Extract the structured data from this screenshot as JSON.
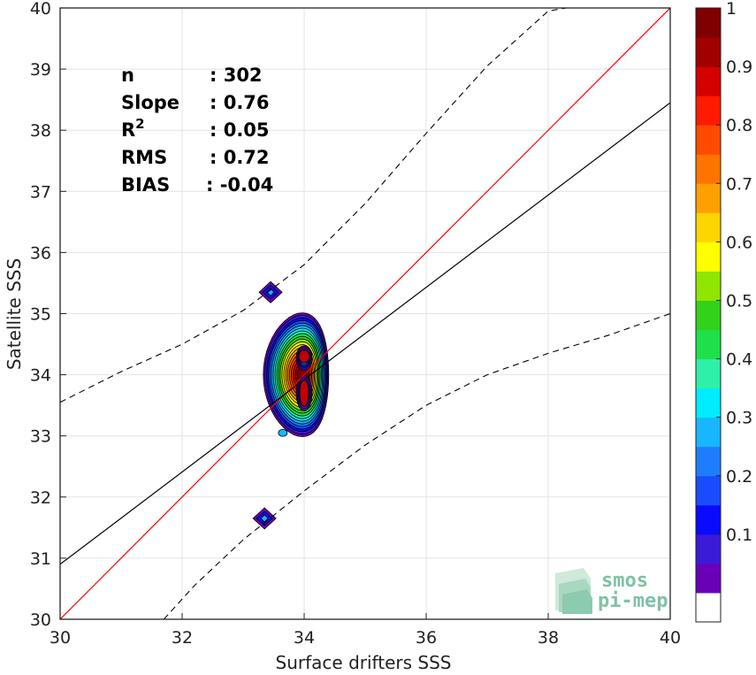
{
  "chart_data": {
    "type": "scatter",
    "subtype": "density-contour",
    "xlabel": "Surface drifters SSS",
    "ylabel": "Satellite SSS",
    "xlim": [
      30,
      40
    ],
    "ylim": [
      30,
      40
    ],
    "xticks": [
      "30",
      "32",
      "34",
      "36",
      "38",
      "40"
    ],
    "yticks": [
      "30",
      "31",
      "32",
      "33",
      "34",
      "35",
      "36",
      "37",
      "38",
      "39",
      "40"
    ],
    "grid": true,
    "stats": [
      {
        "label": "n",
        "value": ": 302"
      },
      {
        "label": "Slope",
        "value": ": 0.76"
      },
      {
        "label": "R",
        "sup": "2",
        "value": ": 0.05"
      },
      {
        "label": "RMS",
        "value": ": 0.72"
      },
      {
        "label": "BIAS",
        "value": ": -0.04"
      }
    ],
    "lines": [
      {
        "kind": "identity",
        "color": "#ff0000",
        "points": [
          [
            30,
            30
          ],
          [
            40,
            40
          ]
        ]
      },
      {
        "kind": "regression",
        "color": "#000000",
        "points": [
          [
            30,
            30.9
          ],
          [
            40,
            38.45
          ]
        ]
      }
    ],
    "confidence_bounds": {
      "upper": [
        [
          30,
          33.55
        ],
        [
          31,
          34.05
        ],
        [
          32,
          34.5
        ],
        [
          33,
          35.05
        ],
        [
          34,
          35.8
        ],
        [
          35,
          36.8
        ],
        [
          36,
          37.95
        ],
        [
          37,
          39.05
        ],
        [
          38,
          39.95
        ],
        [
          38.3,
          40
        ]
      ],
      "lower": [
        [
          31.7,
          30
        ],
        [
          32.2,
          30.55
        ],
        [
          33,
          31.3
        ],
        [
          34,
          32.1
        ],
        [
          35,
          32.85
        ],
        [
          36,
          33.5
        ],
        [
          37,
          34.0
        ],
        [
          38,
          34.35
        ],
        [
          39,
          34.65
        ],
        [
          40,
          35.0
        ]
      ]
    },
    "density_peaks": [
      {
        "x": 34.0,
        "y": 34.3,
        "level": 1.0
      },
      {
        "x": 34.0,
        "y": 33.7,
        "level": 0.95
      },
      {
        "x": 33.45,
        "y": 35.35,
        "level": 0.15
      },
      {
        "x": 33.35,
        "y": 31.65,
        "level": 0.15
      },
      {
        "x": 33.65,
        "y": 33.05,
        "level": 0.25
      }
    ],
    "colorbar": {
      "range": [
        0,
        1
      ],
      "ticks": [
        "0.1",
        "0.2",
        "0.3",
        "0.4",
        "0.5",
        "0.6",
        "0.7",
        "0.8",
        "0.9",
        "1"
      ],
      "colors": [
        "#ffffff",
        "#6a00b8",
        "#3a1bd8",
        "#0a0aff",
        "#1a4cff",
        "#1e7dff",
        "#18b6ff",
        "#00ecff",
        "#2ef0a8",
        "#1ee04a",
        "#32d11a",
        "#90e600",
        "#ffff00",
        "#ffd500",
        "#ffa000",
        "#ff7400",
        "#ff4a00",
        "#ff1a00",
        "#d40000",
        "#a00000",
        "#800000"
      ]
    }
  },
  "logo": {
    "line1": "smos",
    "line2": "pi-mep"
  }
}
